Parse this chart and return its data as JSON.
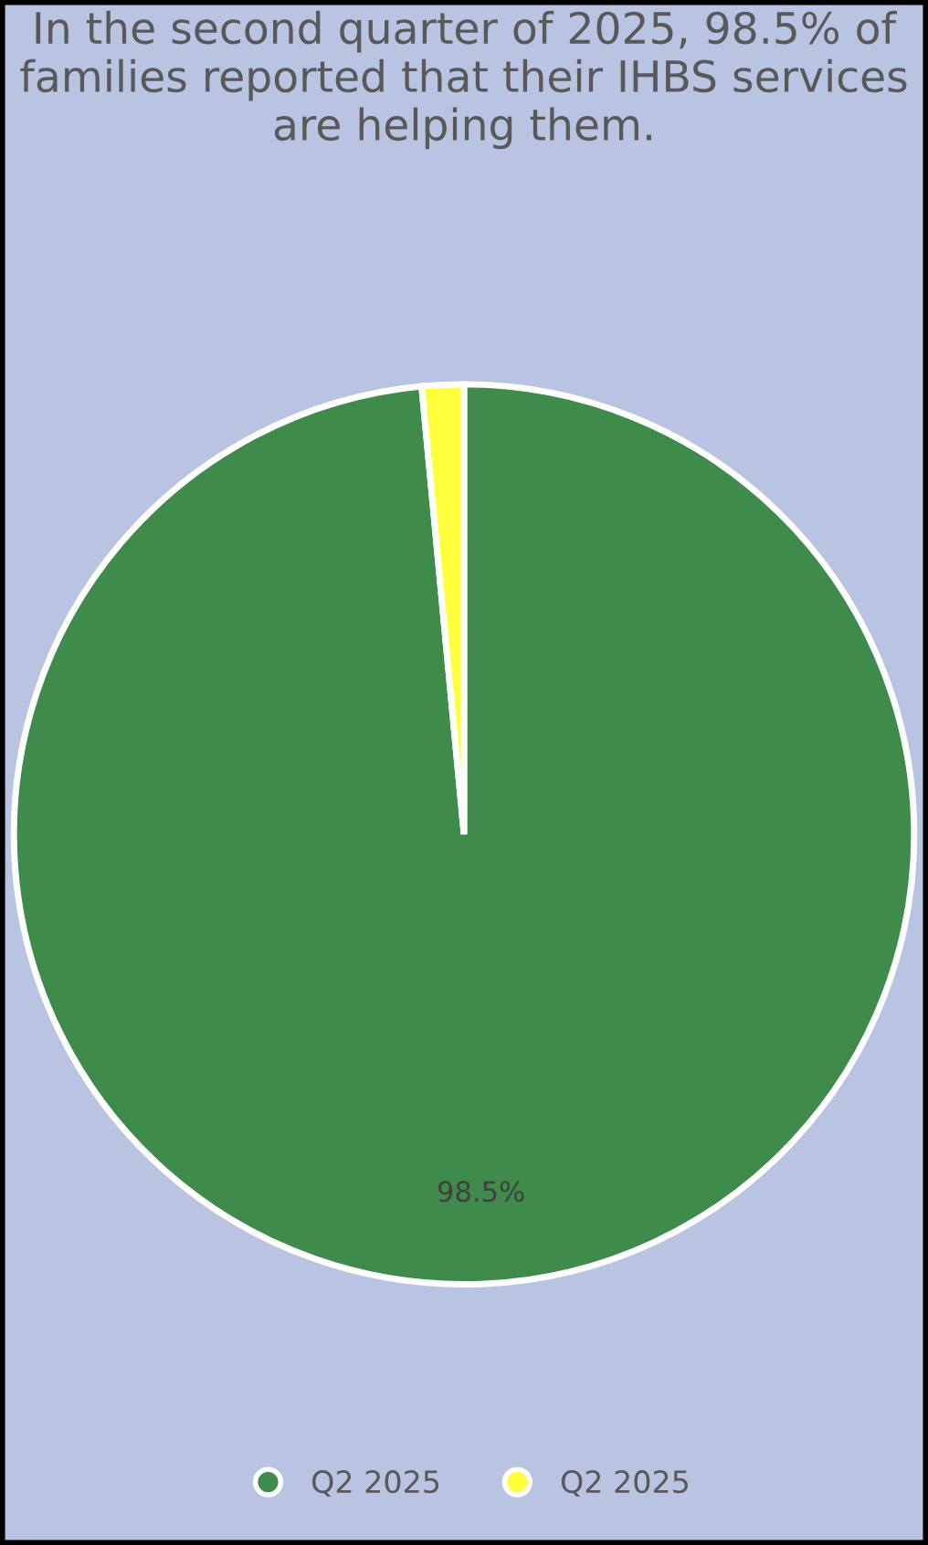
{
  "chart_data": {
    "type": "pie",
    "title": "In the second quarter of 2025, 98.5% of families reported that their IHBS services are helping them.",
    "categories": [
      "Q2 2025",
      "Q2 2025"
    ],
    "values": [
      98.5,
      1.5
    ],
    "colors": [
      "#3e8b4b",
      "#ffff3c"
    ],
    "value_labels": [
      "98.5%",
      null
    ],
    "legend": "bottom"
  }
}
